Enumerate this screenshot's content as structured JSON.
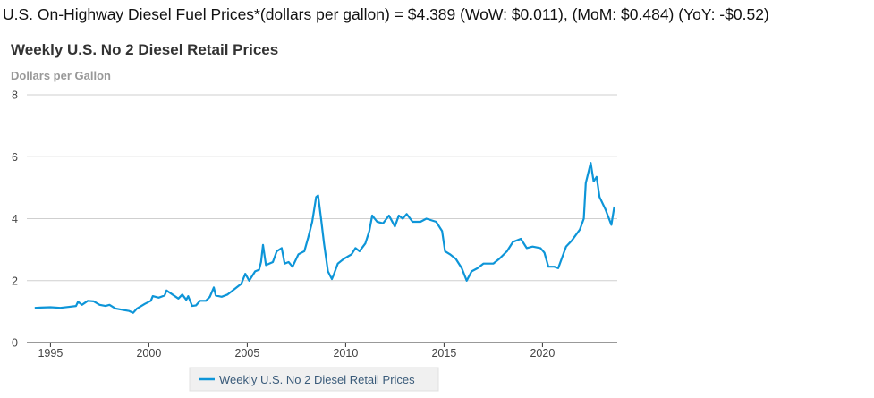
{
  "headline": "U.S. On-Highway Diesel Fuel Prices*(dollars per gallon) = $4.389 (WoW: $0.011), (MoM: $0.484) (YoY: -$0.52)",
  "chart_data": {
    "type": "line",
    "title": "Weekly U.S. No 2 Diesel Retail Prices",
    "ylabel": "Dollars per Gallon",
    "xlabel": "",
    "xlim": [
      1993.8,
      2023.8
    ],
    "ylim": [
      0,
      8
    ],
    "xticks": [
      "1995",
      "2000",
      "2005",
      "2010",
      "2015",
      "2020"
    ],
    "yticks": [
      "0",
      "2",
      "4",
      "6",
      "8"
    ],
    "grid": true,
    "legend_position": "bottom",
    "color": "#0d95d8",
    "series": [
      {
        "name": "Weekly U.S. No 2 Diesel Retail Prices",
        "x": [
          1994.2,
          1994.5,
          1995.0,
          1995.5,
          1995.9,
          1996.3,
          1996.4,
          1996.6,
          1996.9,
          1997.2,
          1997.5,
          1997.8,
          1998.0,
          1998.3,
          1998.7,
          1999.0,
          1999.2,
          1999.4,
          1999.8,
          2000.1,
          2000.2,
          2000.5,
          2000.8,
          2000.9,
          2001.2,
          2001.5,
          2001.7,
          2001.9,
          2002.0,
          2002.2,
          2002.4,
          2002.6,
          2002.9,
          2003.1,
          2003.3,
          2003.4,
          2003.7,
          2004.0,
          2004.4,
          2004.7,
          2004.9,
          2005.1,
          2005.4,
          2005.6,
          2005.7,
          2005.8,
          2005.95,
          2006.3,
          2006.5,
          2006.75,
          2006.9,
          2007.1,
          2007.3,
          2007.6,
          2007.9,
          2008.1,
          2008.3,
          2008.5,
          2008.6,
          2008.75,
          2008.9,
          2009.1,
          2009.3,
          2009.4,
          2009.6,
          2009.9,
          2010.3,
          2010.5,
          2010.7,
          2011.0,
          2011.2,
          2011.35,
          2011.6,
          2011.9,
          2012.2,
          2012.5,
          2012.7,
          2012.9,
          2013.1,
          2013.4,
          2013.8,
          2014.1,
          2014.6,
          2014.9,
          2015.05,
          2015.3,
          2015.6,
          2015.9,
          2016.15,
          2016.4,
          2016.7,
          2017.0,
          2017.5,
          2017.8,
          2018.2,
          2018.5,
          2018.9,
          2019.2,
          2019.5,
          2019.9,
          2020.1,
          2020.3,
          2020.6,
          2020.8,
          2021.2,
          2021.5,
          2021.9,
          2022.1,
          2022.2,
          2022.45,
          2022.6,
          2022.75,
          2022.9,
          2023.2,
          2023.5,
          2023.65
        ],
        "y": [
          1.12,
          1.13,
          1.14,
          1.12,
          1.15,
          1.18,
          1.32,
          1.22,
          1.35,
          1.33,
          1.22,
          1.18,
          1.22,
          1.1,
          1.05,
          1.02,
          0.96,
          1.1,
          1.25,
          1.35,
          1.5,
          1.45,
          1.52,
          1.68,
          1.55,
          1.42,
          1.55,
          1.38,
          1.5,
          1.18,
          1.2,
          1.35,
          1.35,
          1.48,
          1.78,
          1.52,
          1.48,
          1.55,
          1.75,
          1.9,
          2.22,
          2.0,
          2.3,
          2.35,
          2.6,
          3.15,
          2.5,
          2.6,
          2.95,
          3.05,
          2.55,
          2.6,
          2.45,
          2.85,
          2.95,
          3.4,
          3.9,
          4.7,
          4.75,
          4.0,
          3.2,
          2.3,
          2.05,
          2.2,
          2.55,
          2.7,
          2.85,
          3.05,
          2.95,
          3.2,
          3.6,
          4.1,
          3.9,
          3.85,
          4.1,
          3.75,
          4.1,
          4.0,
          4.15,
          3.9,
          3.9,
          4.0,
          3.9,
          3.6,
          2.95,
          2.85,
          2.7,
          2.4,
          2.0,
          2.3,
          2.4,
          2.55,
          2.55,
          2.7,
          2.95,
          3.25,
          3.35,
          3.05,
          3.1,
          3.05,
          2.9,
          2.45,
          2.45,
          2.4,
          3.1,
          3.3,
          3.65,
          4.0,
          5.15,
          5.8,
          5.2,
          5.35,
          4.7,
          4.3,
          3.8,
          4.39
        ]
      }
    ]
  }
}
